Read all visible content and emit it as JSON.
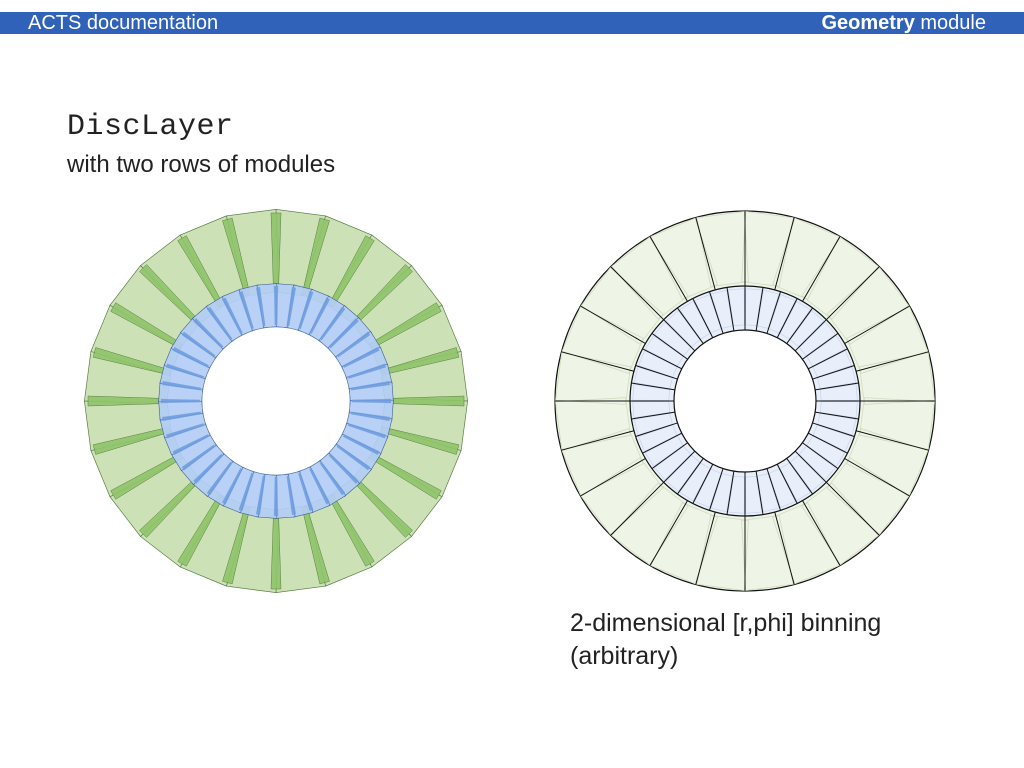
{
  "header": {
    "left_text": "ACTS documentation",
    "right_bold": "Geometry",
    "right_text": " module"
  },
  "title": "DiscLayer",
  "subtitle": "with two rows of modules",
  "caption": {
    "line1": "2-dimensional [r,phi] binning",
    "line2": "(arbitrary)"
  },
  "colors": {
    "header_bar": "#2f62b8",
    "outer_module_fill": "#c6dfae",
    "outer_module_edge": "#8fc46a",
    "inner_module_fill": "#b3cdf5",
    "inner_module_edge": "#6f9de0",
    "bin_outer_fill": "#eef4e6",
    "bin_inner_fill": "#e8effb"
  },
  "diagram": {
    "outer_ring_modules": 24,
    "inner_ring_modules": 40,
    "outer_ring_bins": 24,
    "inner_ring_bins": 40
  }
}
